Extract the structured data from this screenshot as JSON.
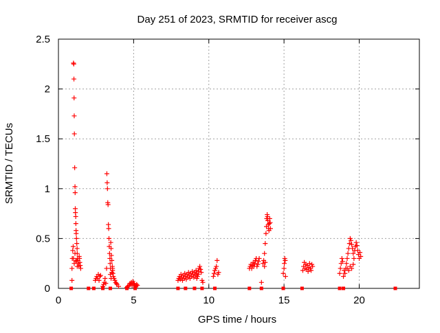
{
  "chart_data": {
    "type": "scatter",
    "title": "Day 251 of 2023, SRMTID for receiver ascg",
    "xlabel": "GPS time / hours",
    "ylabel": "SRMTID / TECUs",
    "xlim": [
      0,
      24
    ],
    "ylim": [
      0,
      2.5
    ],
    "x_ticks": [
      0,
      5,
      10,
      15,
      20
    ],
    "y_ticks": [
      0,
      0.5,
      1,
      1.5,
      2,
      2.5
    ],
    "x_tick_labels": [
      "0",
      "5",
      "10",
      "15",
      "20"
    ],
    "y_tick_labels": [
      "0",
      "0.5",
      "1",
      "1.5",
      "2",
      "2.5"
    ],
    "grid": true,
    "marker": "plus",
    "color": "#ff0000",
    "series": [
      {
        "name": "SRMTID plus",
        "points": [
          [
            0.9,
            0.08
          ],
          [
            0.9,
            0.2
          ],
          [
            0.92,
            0.3
          ],
          [
            0.95,
            0.38
          ],
          [
            0.98,
            0.42
          ],
          [
            1.0,
            2.26
          ],
          [
            1.02,
            2.25
          ],
          [
            1.03,
            2.1
          ],
          [
            1.04,
            1.91
          ],
          [
            1.05,
            1.73
          ],
          [
            1.06,
            1.55
          ],
          [
            1.08,
            1.21
          ],
          [
            1.1,
            1.02
          ],
          [
            1.11,
            0.96
          ],
          [
            1.12,
            0.8
          ],
          [
            1.13,
            0.76
          ],
          [
            1.15,
            0.72
          ],
          [
            1.16,
            0.65
          ],
          [
            1.17,
            0.58
          ],
          [
            1.18,
            0.55
          ],
          [
            1.2,
            0.5
          ],
          [
            1.22,
            0.45
          ],
          [
            1.24,
            0.4
          ],
          [
            1.25,
            0.35
          ],
          [
            1.27,
            0.3
          ],
          [
            1.3,
            0.28
          ],
          [
            1.32,
            0.25
          ],
          [
            1.35,
            0.22
          ],
          [
            1.38,
            0.32
          ],
          [
            1.4,
            0.3
          ],
          [
            1.42,
            0.26
          ],
          [
            1.45,
            0.23
          ],
          [
            1.48,
            0.2
          ],
          [
            1.0,
            0.3
          ],
          [
            1.05,
            0.25
          ],
          [
            1.1,
            0.35
          ],
          [
            1.15,
            0.27
          ],
          [
            1.2,
            0.28
          ],
          [
            1.25,
            0.22
          ],
          [
            2.45,
            0.08
          ],
          [
            2.5,
            0.1
          ],
          [
            2.55,
            0.12
          ],
          [
            2.6,
            0.1
          ],
          [
            2.65,
            0.14
          ],
          [
            2.7,
            0.08
          ],
          [
            2.75,
            0.12
          ],
          [
            2.8,
            0.13
          ],
          [
            2.95,
            0.02
          ],
          [
            3.0,
            0.04
          ],
          [
            3.05,
            0.06
          ],
          [
            3.1,
            0.1
          ],
          [
            3.15,
            0.05
          ],
          [
            3.2,
            0.2
          ],
          [
            3.22,
            1.15
          ],
          [
            3.24,
            1.06
          ],
          [
            3.26,
            1.0
          ],
          [
            3.28,
            0.86
          ],
          [
            3.3,
            0.84
          ],
          [
            3.32,
            0.64
          ],
          [
            3.34,
            0.6
          ],
          [
            3.36,
            0.5
          ],
          [
            3.38,
            0.42
          ],
          [
            3.4,
            0.35
          ],
          [
            3.42,
            0.3
          ],
          [
            3.44,
            0.25
          ],
          [
            3.46,
            0.2
          ],
          [
            3.48,
            0.46
          ],
          [
            3.5,
            0.4
          ],
          [
            3.52,
            0.33
          ],
          [
            3.55,
            0.28
          ],
          [
            3.58,
            0.22
          ],
          [
            3.6,
            0.18
          ],
          [
            3.62,
            0.15
          ],
          [
            3.65,
            0.12
          ],
          [
            3.7,
            0.1
          ],
          [
            3.75,
            0.08
          ],
          [
            3.8,
            0.06
          ],
          [
            3.85,
            0.05
          ],
          [
            3.9,
            0.04
          ],
          [
            4.0,
            0.02
          ],
          [
            3.45,
            0.14
          ],
          [
            3.5,
            0.1
          ],
          [
            3.55,
            0.16
          ],
          [
            3.6,
            0.2
          ],
          [
            4.55,
            0.01
          ],
          [
            4.6,
            0.02
          ],
          [
            4.7,
            0.03
          ],
          [
            4.75,
            0.05
          ],
          [
            4.8,
            0.04
          ],
          [
            4.85,
            0.06
          ],
          [
            4.9,
            0.03
          ],
          [
            4.95,
            0.07
          ],
          [
            5.0,
            0.05
          ],
          [
            5.05,
            0.04
          ],
          [
            5.1,
            0.03
          ],
          [
            5.15,
            0.02
          ],
          [
            5.2,
            0.04
          ],
          [
            5.25,
            0.03
          ],
          [
            7.95,
            0.08
          ],
          [
            8.0,
            0.1
          ],
          [
            8.05,
            0.12
          ],
          [
            8.1,
            0.09
          ],
          [
            8.15,
            0.14
          ],
          [
            8.2,
            0.11
          ],
          [
            8.25,
            0.08
          ],
          [
            8.3,
            0.13
          ],
          [
            8.35,
            0.1
          ],
          [
            8.4,
            0.15
          ],
          [
            8.45,
            0.12
          ],
          [
            8.5,
            0.09
          ],
          [
            8.55,
            0.14
          ],
          [
            8.6,
            0.11
          ],
          [
            8.65,
            0.16
          ],
          [
            8.7,
            0.13
          ],
          [
            8.75,
            0.1
          ],
          [
            8.8,
            0.15
          ],
          [
            8.85,
            0.12
          ],
          [
            8.9,
            0.17
          ],
          [
            8.95,
            0.14
          ],
          [
            9.0,
            0.11
          ],
          [
            9.05,
            0.16
          ],
          [
            9.1,
            0.13
          ],
          [
            9.15,
            0.18
          ],
          [
            9.2,
            0.15
          ],
          [
            9.25,
            0.12
          ],
          [
            9.3,
            0.17
          ],
          [
            9.35,
            0.2
          ],
          [
            9.4,
            0.22
          ],
          [
            9.45,
            0.19
          ],
          [
            9.5,
            0.16
          ],
          [
            9.55,
            0.08
          ],
          [
            9.6,
            0.06
          ],
          [
            9.3,
            0.14
          ],
          [
            9.2,
            0.1
          ],
          [
            10.3,
            0.12
          ],
          [
            10.35,
            0.15
          ],
          [
            10.4,
            0.18
          ],
          [
            10.45,
            0.2
          ],
          [
            10.5,
            0.22
          ],
          [
            10.55,
            0.28
          ],
          [
            10.6,
            0.14
          ],
          [
            10.65,
            0.16
          ],
          [
            12.7,
            0.2
          ],
          [
            12.75,
            0.22
          ],
          [
            12.8,
            0.24
          ],
          [
            12.85,
            0.2
          ],
          [
            12.9,
            0.23
          ],
          [
            12.95,
            0.26
          ],
          [
            13.0,
            0.22
          ],
          [
            13.05,
            0.25
          ],
          [
            13.1,
            0.28
          ],
          [
            13.15,
            0.3
          ],
          [
            13.2,
            0.22
          ],
          [
            13.25,
            0.24
          ],
          [
            13.3,
            0.27
          ],
          [
            13.35,
            0.3
          ],
          [
            13.5,
            0.06
          ],
          [
            13.6,
            0.25
          ],
          [
            13.65,
            0.28
          ],
          [
            13.7,
            0.35
          ],
          [
            13.75,
            0.45
          ],
          [
            13.8,
            0.55
          ],
          [
            13.83,
            0.62
          ],
          [
            13.85,
            0.7
          ],
          [
            13.88,
            0.74
          ],
          [
            13.9,
            0.72
          ],
          [
            13.92,
            0.68
          ],
          [
            13.95,
            0.64
          ],
          [
            13.98,
            0.6
          ],
          [
            14.0,
            0.58
          ],
          [
            14.02,
            0.65
          ],
          [
            14.05,
            0.7
          ],
          [
            14.08,
            0.66
          ],
          [
            14.1,
            0.6
          ],
          [
            13.7,
            0.22
          ],
          [
            13.75,
            0.26
          ],
          [
            14.95,
            0.15
          ],
          [
            15.0,
            0.2
          ],
          [
            15.02,
            0.25
          ],
          [
            15.05,
            0.3
          ],
          [
            15.08,
            0.28
          ],
          [
            15.1,
            0.12
          ],
          [
            16.25,
            0.18
          ],
          [
            16.3,
            0.22
          ],
          [
            16.35,
            0.26
          ],
          [
            16.4,
            0.2
          ],
          [
            16.45,
            0.24
          ],
          [
            16.5,
            0.19
          ],
          [
            16.55,
            0.23
          ],
          [
            16.6,
            0.17
          ],
          [
            16.65,
            0.21
          ],
          [
            16.7,
            0.25
          ],
          [
            16.75,
            0.2
          ],
          [
            16.8,
            0.18
          ],
          [
            16.85,
            0.24
          ],
          [
            16.9,
            0.22
          ],
          [
            18.7,
            0.15
          ],
          [
            18.75,
            0.2
          ],
          [
            18.8,
            0.25
          ],
          [
            18.85,
            0.3
          ],
          [
            18.9,
            0.27
          ],
          [
            18.95,
            0.12
          ],
          [
            19.0,
            0.18
          ],
          [
            19.05,
            0.15
          ],
          [
            19.1,
            0.2
          ],
          [
            19.15,
            0.25
          ],
          [
            19.2,
            0.3
          ],
          [
            19.25,
            0.35
          ],
          [
            19.3,
            0.4
          ],
          [
            19.35,
            0.45
          ],
          [
            19.4,
            0.5
          ],
          [
            19.45,
            0.48
          ],
          [
            19.5,
            0.44
          ],
          [
            19.55,
            0.4
          ],
          [
            19.6,
            0.35
          ],
          [
            19.65,
            0.3
          ],
          [
            19.7,
            0.38
          ],
          [
            19.75,
            0.42
          ],
          [
            19.8,
            0.46
          ],
          [
            19.85,
            0.43
          ],
          [
            19.9,
            0.38
          ],
          [
            19.95,
            0.34
          ],
          [
            20.0,
            0.3
          ],
          [
            20.05,
            0.36
          ],
          [
            20.1,
            0.32
          ],
          [
            19.2,
            0.2
          ],
          [
            19.3,
            0.18
          ],
          [
            19.4,
            0.22
          ],
          [
            19.5,
            0.2
          ],
          [
            19.6,
            0.24
          ]
        ]
      },
      {
        "name": "SRMTID square",
        "points": [
          [
            0.85,
            0
          ],
          [
            2.0,
            0
          ],
          [
            2.35,
            0
          ],
          [
            2.95,
            0
          ],
          [
            3.45,
            0
          ],
          [
            4.55,
            0
          ],
          [
            5.1,
            0
          ],
          [
            7.95,
            0
          ],
          [
            8.45,
            0
          ],
          [
            9.05,
            0
          ],
          [
            9.55,
            0
          ],
          [
            10.4,
            0
          ],
          [
            12.7,
            0
          ],
          [
            13.5,
            0
          ],
          [
            14.95,
            0
          ],
          [
            16.2,
            0
          ],
          [
            18.7,
            0
          ],
          [
            18.95,
            0
          ],
          [
            22.4,
            0
          ]
        ]
      }
    ]
  }
}
